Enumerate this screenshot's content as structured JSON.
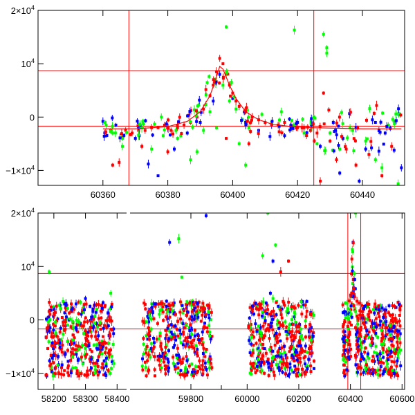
{
  "chart_data": [
    {
      "type": "scatter",
      "panel": "top",
      "xlim": [
        60340,
        60453
      ],
      "ylim": [
        -12800,
        20000
      ],
      "x_ticks": [
        {
          "v": 60360,
          "label": "60360"
        },
        {
          "v": 60380,
          "label": "60380"
        },
        {
          "v": 60400,
          "label": "60400"
        },
        {
          "v": 60420,
          "label": "60420"
        },
        {
          "v": 60440,
          "label": "60440"
        }
      ],
      "y_ticks": [
        {
          "v": 20000,
          "label": "2×10",
          "exp": "4"
        },
        {
          "v": 10000,
          "label": "10",
          "exp": "4"
        },
        {
          "v": 0,
          "label": "0",
          "exp": ""
        },
        {
          "v": -10000,
          "label": "−1×10",
          "exp": "4"
        }
      ],
      "hlines": [
        8700,
        -1700
      ],
      "vlines": [
        60368,
        60425
      ],
      "colors": {
        "blue": "#0000ff",
        "green": "#00ff00",
        "red": "#ff0000",
        "line": "#ff0000"
      },
      "series": [
        {
          "color": "green",
          "points": [
            [
              60361,
              -1500
            ],
            [
              60363,
              -3000
            ],
            [
              60366,
              -5500
            ],
            [
              60372,
              -2000
            ],
            [
              60375,
              -6000
            ],
            [
              60378,
              0
            ],
            [
              60383,
              -4000
            ],
            [
              60387,
              -8000
            ],
            [
              60391,
              -2500
            ],
            [
              60393,
              1000
            ],
            [
              60397,
              6000
            ],
            [
              60399,
              3000
            ],
            [
              60401,
              1500
            ],
            [
              60403,
              -500
            ],
            [
              60405,
              -2000
            ],
            [
              60409,
              500
            ],
            [
              60412,
              -1000
            ],
            [
              60415,
              1000
            ],
            [
              60419,
              16300
            ],
            [
              60422,
              -3000
            ],
            [
              60426,
              -5000
            ],
            [
              60428,
              15500
            ],
            [
              60429,
              12000
            ],
            [
              60429,
              13000
            ],
            [
              60430,
              -3000
            ],
            [
              60433,
              -6000
            ],
            [
              60437,
              -2500
            ],
            [
              60441,
              -4500
            ],
            [
              60444,
              -8000
            ],
            [
              60448,
              -1500
            ],
            [
              60451,
              -12500
            ],
            [
              60398,
              16900
            ],
            [
              60395,
              -2000
            ],
            [
              60402,
              -5000
            ],
            [
              60366,
              -4000
            ],
            [
              60389,
              -6500
            ],
            [
              60446,
              -9500
            ],
            [
              60404,
              -9000
            ]
          ]
        },
        {
          "color": "blue",
          "points": [
            [
              60360,
              -800
            ],
            [
              60364,
              -1500
            ],
            [
              60370,
              -4000
            ],
            [
              60374,
              -8800
            ],
            [
              60380,
              -2000
            ],
            [
              60386,
              -3000
            ],
            [
              60390,
              -1000
            ],
            [
              60394,
              3000
            ],
            [
              60396,
              8000
            ],
            [
              60400,
              3500
            ],
            [
              60404,
              -1000
            ],
            [
              60408,
              -2500
            ],
            [
              60412,
              -1500
            ],
            [
              60416,
              -3500
            ],
            [
              60420,
              -1000
            ],
            [
              60424,
              -2500
            ],
            [
              60427,
              -5500
            ],
            [
              60431,
              -1000
            ],
            [
              60434,
              -4000
            ],
            [
              60438,
              -2000
            ],
            [
              60441,
              -6000
            ],
            [
              60444,
              -1000
            ],
            [
              60447,
              -3000
            ],
            [
              60450,
              -800
            ],
            [
              60452,
              -9500
            ],
            [
              60377,
              -11000
            ],
            [
              60439,
              -12000
            ],
            [
              60433,
              -10500
            ],
            [
              60382,
              -6000
            ]
          ]
        },
        {
          "color": "red",
          "points": [
            [
              60363,
              -9000
            ],
            [
              60365,
              -8500
            ],
            [
              60367,
              -2500
            ],
            [
              60369,
              -3000
            ],
            [
              60371,
              -2500
            ],
            [
              60373,
              -2500
            ],
            [
              60375,
              -2000
            ],
            [
              60377,
              -2000
            ],
            [
              60379,
              -1500
            ],
            [
              60381,
              -2500
            ],
            [
              60383,
              -2000
            ],
            [
              60385,
              -1500
            ],
            [
              60387,
              -1000
            ],
            [
              60389,
              0
            ],
            [
              60391,
              1500
            ],
            [
              60393,
              4000
            ],
            [
              60394,
              6000
            ],
            [
              60395,
              8500
            ],
            [
              60396,
              11000
            ],
            [
              60397,
              10000
            ],
            [
              60398,
              8000
            ],
            [
              60399,
              6000
            ],
            [
              60400,
              4500
            ],
            [
              60401,
              3000
            ],
            [
              60402,
              2000
            ],
            [
              60404,
              1000
            ],
            [
              60406,
              0
            ],
            [
              60408,
              -500
            ],
            [
              60410,
              -1000
            ],
            [
              60412,
              -1500
            ],
            [
              60414,
              -1500
            ],
            [
              60416,
              -1000
            ],
            [
              60418,
              -1500
            ],
            [
              60420,
              -2000
            ],
            [
              60422,
              -2000
            ],
            [
              60424,
              -2500
            ],
            [
              60426,
              -3000
            ],
            [
              60428,
              4500
            ],
            [
              60430,
              -4500
            ],
            [
              60432,
              -8000
            ],
            [
              60435,
              -6000
            ],
            [
              60438,
              -9000
            ],
            [
              60442,
              -7000
            ],
            [
              60446,
              -11000
            ],
            [
              60449,
              -5500
            ],
            [
              60372,
              -5500
            ],
            [
              60380,
              -6500
            ],
            [
              60398,
              -4000
            ],
            [
              60405,
              -5000
            ],
            [
              60427,
              -12000
            ]
          ]
        }
      ],
      "model_curve": [
        [
          60360,
          -2200
        ],
        [
          60370,
          -2200
        ],
        [
          60380,
          -1800
        ],
        [
          60386,
          -800
        ],
        [
          60390,
          1000
        ],
        [
          60393,
          4000
        ],
        [
          60395,
          7500
        ],
        [
          60396,
          9500
        ],
        [
          60397,
          9000
        ],
        [
          60399,
          6000
        ],
        [
          60401,
          3500
        ],
        [
          60404,
          1000
        ],
        [
          60408,
          -500
        ],
        [
          60412,
          -1300
        ],
        [
          60418,
          -1800
        ],
        [
          60425,
          -2000
        ],
        [
          60440,
          -2200
        ],
        [
          60452,
          -2200
        ]
      ]
    },
    {
      "type": "scatter",
      "panel": "bottom",
      "x_segments": [
        {
          "xlim": [
            58150,
            58430
          ],
          "ticks": [
            {
              "v": 58200,
              "label": "58200"
            },
            {
              "v": 58300,
              "label": "58300"
            },
            {
              "v": 58400,
              "label": "58400"
            }
          ]
        },
        {
          "xlim": [
            59600,
            59900
          ],
          "ticks": [
            {
              "v": 59800,
              "label": "59800"
            }
          ]
        },
        {
          "xlim": [
            59900,
            60610
          ],
          "ticks": [
            {
              "v": 60000,
              "label": "60000"
            },
            {
              "v": 60200,
              "label": "60200"
            },
            {
              "v": 60400,
              "label": "60400"
            },
            {
              "v": 60600,
              "label": "60600"
            }
          ]
        }
      ],
      "ylim": [
        -13000,
        20000
      ],
      "y_ticks": [
        {
          "v": 20000,
          "label": "2×10",
          "exp": "4"
        },
        {
          "v": 10000,
          "label": "10",
          "exp": "4"
        },
        {
          "v": 0,
          "label": "0",
          "exp": ""
        },
        {
          "v": -10000,
          "label": "−1×10",
          "exp": "4"
        }
      ],
      "hlines": [
        8700,
        -1700
      ],
      "vlines": [
        60390,
        60440
      ],
      "clusters": [
        {
          "segment": 0,
          "x0": 58175,
          "x1": 58390
        },
        {
          "segment": 1,
          "x0": 59640,
          "x1": 59870
        },
        {
          "segment": 2,
          "x0": 60005,
          "x1": 60260
        },
        {
          "segment": 2,
          "x0": 60370,
          "x1": 60595
        }
      ],
      "outliers": [
        {
          "color": "green",
          "x": 58185,
          "y": 9000
        },
        {
          "color": "blue",
          "x": 59730,
          "y": 14500
        },
        {
          "color": "green",
          "x": 59760,
          "y": 15200
        },
        {
          "color": "green",
          "x": 59770,
          "y": 8000
        },
        {
          "color": "blue",
          "x": 59850,
          "y": 19500
        },
        {
          "color": "green",
          "x": 60060,
          "y": 12000
        },
        {
          "color": "green",
          "x": 60080,
          "y": 20000
        },
        {
          "color": "blue",
          "x": 60100,
          "y": 11000
        },
        {
          "color": "green",
          "x": 60110,
          "y": 14000
        },
        {
          "color": "red",
          "x": 60130,
          "y": 9000
        },
        {
          "color": "red",
          "x": 60160,
          "y": 11000
        },
        {
          "color": "green",
          "x": 60420,
          "y": 20000
        },
        {
          "color": "blue",
          "x": 58300,
          "y": 4000
        },
        {
          "color": "green",
          "x": 58380,
          "y": 5000
        },
        {
          "color": "red",
          "x": 58255,
          "y": 3000
        },
        {
          "color": "blue",
          "x": 59720,
          "y": 3500
        },
        {
          "color": "green",
          "x": 60100,
          "y": 4000
        },
        {
          "color": "blue",
          "x": 60090,
          "y": 5000
        }
      ],
      "colors": {
        "blue": "#0000ff",
        "green": "#00ff00",
        "red": "#ff0000",
        "line": "#ff0000"
      }
    }
  ]
}
